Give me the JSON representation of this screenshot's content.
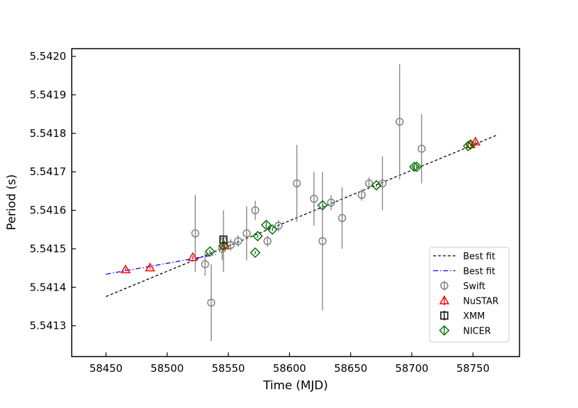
{
  "chart_data": {
    "type": "scatter",
    "xlabel": "Time (MJD)",
    "ylabel": "Period (s)",
    "xlim": [
      58422,
      58788
    ],
    "ylim": [
      5.54122,
      5.54202
    ],
    "xticks": [
      58450,
      58500,
      58550,
      58600,
      58650,
      58700,
      58750
    ],
    "xtick_labels": [
      "58450",
      "58500",
      "58550",
      "58600",
      "58650",
      "58700",
      "58750"
    ],
    "yticks": [
      5.5413,
      5.5414,
      5.5415,
      5.5416,
      5.5417,
      5.5418,
      5.5419,
      5.542
    ],
    "ytick_labels": [
      "5.5413",
      "5.5414",
      "5.5415",
      "5.5416",
      "5.5417",
      "5.5418",
      "5.5419",
      "5.5420"
    ],
    "grid": false,
    "legend_position": "lower-right",
    "colors": {
      "fit_black": "#000000",
      "fit_blue": "#0000ff",
      "swift": "#808080",
      "nustar": "#ff0000",
      "xmm": "#000000",
      "nicer": "#007000"
    },
    "lines": [
      {
        "name": "Best fit",
        "style": "dashed",
        "color": "#000000",
        "x": [
          58450,
          58770
        ],
        "y": [
          5.541376,
          5.541796
        ]
      },
      {
        "name": "Best fit",
        "style": "dashdot",
        "color": "#0000ff",
        "x": [
          58450,
          58540
        ],
        "y": [
          5.541434,
          5.541485
        ]
      }
    ],
    "series": [
      {
        "name": "Swift",
        "marker": "circle",
        "color": "#808080",
        "x": [
          58523,
          58531,
          58536,
          58545,
          58546,
          58552,
          58558,
          58565,
          58572,
          58582,
          58591,
          58606,
          58620,
          58627,
          58634,
          58643,
          58659,
          58665,
          58676,
          58690,
          58708
        ],
        "y": [
          5.54154,
          5.54146,
          5.54136,
          5.5415,
          5.54152,
          5.54151,
          5.54152,
          5.54154,
          5.5416,
          5.54152,
          5.54156,
          5.54167,
          5.54163,
          5.54152,
          5.54162,
          5.54158,
          5.54164,
          5.54167,
          5.54167,
          5.54183,
          5.54176
        ],
        "yerr": [
          0.0001,
          3e-05,
          0.0001,
          3e-05,
          8e-05,
          1.5e-05,
          1.5e-05,
          7e-05,
          2.5e-05,
          1.5e-05,
          1.5e-05,
          0.0001,
          7e-05,
          0.00018,
          2e-05,
          8e-05,
          1.5e-05,
          1.5e-05,
          7e-05,
          0.00015,
          9e-05
        ]
      },
      {
        "name": "NuSTAR",
        "marker": "triangle",
        "color": "#ff0000",
        "x": [
          58466,
          58486,
          58521,
          58547,
          58748,
          58752
        ],
        "y": [
          5.541446,
          5.541451,
          5.541478,
          5.541508,
          5.541771,
          5.541778
        ],
        "yerr": [
          4e-06,
          4e-06,
          4e-06,
          4e-06,
          4e-06,
          4e-06
        ]
      },
      {
        "name": "XMM",
        "marker": "square",
        "color": "#000000",
        "x": [
          58546
        ],
        "y": [
          5.541524
        ],
        "yerr": [
          5e-06
        ]
      },
      {
        "name": "NICER",
        "marker": "diamond",
        "color": "#007000",
        "x": [
          58535,
          58546,
          58572,
          58574,
          58581,
          58586,
          58627,
          58671,
          58702,
          58704,
          58746,
          58748
        ],
        "y": [
          5.541493,
          5.541508,
          5.54149,
          5.541533,
          5.541562,
          5.54155,
          5.541613,
          5.541665,
          5.541713,
          5.541713,
          5.541767,
          5.541771
        ],
        "yerr": [
          4e-06,
          4e-06,
          4e-06,
          4e-06,
          8e-06,
          4e-06,
          4e-06,
          4e-06,
          4e-06,
          4e-06,
          4e-06,
          4e-06
        ]
      }
    ],
    "legend": [
      {
        "label": "Best fit",
        "kind": "line",
        "style": "dashed",
        "color": "#000000"
      },
      {
        "label": "Best fit",
        "kind": "line",
        "style": "dashdot",
        "color": "#0000ff"
      },
      {
        "label": "Swift",
        "kind": "marker",
        "marker": "circle",
        "color": "#808080"
      },
      {
        "label": "NuSTAR",
        "kind": "marker",
        "marker": "triangle",
        "color": "#ff0000"
      },
      {
        "label": "XMM",
        "kind": "marker",
        "marker": "square",
        "color": "#000000"
      },
      {
        "label": "NICER",
        "kind": "marker",
        "marker": "diamond",
        "color": "#007000"
      }
    ]
  }
}
